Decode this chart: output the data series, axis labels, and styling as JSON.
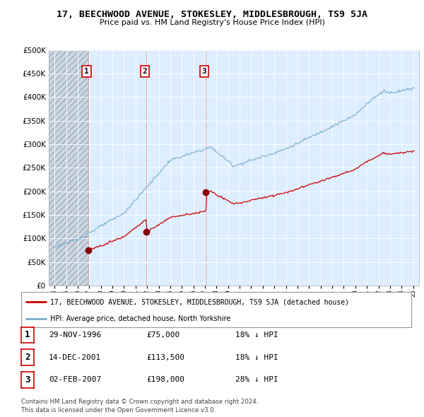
{
  "title": "17, BEECHWOOD AVENUE, STOKESLEY, MIDDLESBROUGH, TS9 5JA",
  "subtitle": "Price paid vs. HM Land Registry's House Price Index (HPI)",
  "property_label": "17, BEECHWOOD AVENUE, STOKESLEY, MIDDLESBROUGH, TS9 5JA (detached house)",
  "hpi_label": "HPI: Average price, detached house, North Yorkshire",
  "sale_color": "#cc0000",
  "hpi_color": "#7aadcf",
  "transactions": [
    {
      "num": 1,
      "date": "29-NOV-1996",
      "year": 1996.91,
      "price": 75000
    },
    {
      "num": 2,
      "date": "14-DEC-2001",
      "year": 2001.95,
      "price": 113500
    },
    {
      "num": 3,
      "date": "02-FEB-2007",
      "year": 2007.09,
      "price": 198000
    }
  ],
  "transaction_notes": [
    {
      "num": 1,
      "date": "29-NOV-1996",
      "price": "£75,000",
      "note": "18% ↓ HPI"
    },
    {
      "num": 2,
      "date": "14-DEC-2001",
      "price": "£113,500",
      "note": "18% ↓ HPI"
    },
    {
      "num": 3,
      "date": "02-FEB-2007",
      "price": "£198,000",
      "note": "28% ↓ HPI"
    }
  ],
  "footer": "Contains HM Land Registry data © Crown copyright and database right 2024.\nThis data is licensed under the Open Government Licence v3.0.",
  "ylim": [
    0,
    500000
  ],
  "yticks": [
    0,
    50000,
    100000,
    150000,
    200000,
    250000,
    300000,
    350000,
    400000,
    450000,
    500000
  ],
  "xlim": [
    1993.5,
    2025.5
  ],
  "background_color": "#ffffff",
  "plot_bg_color": "#ddeeff"
}
